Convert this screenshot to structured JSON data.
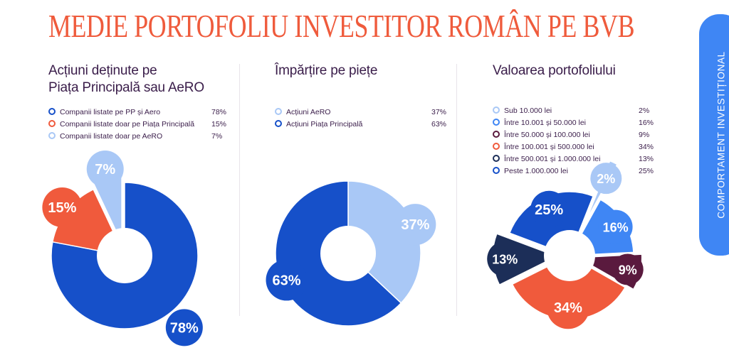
{
  "page": {
    "title": "MEDIE PORTOFOLIU INVESTITOR ROMÂN PE BVB"
  },
  "side_tab": {
    "label": "COMPORTAMENT INVESTIȚIONAL"
  },
  "colors": {
    "title": "#ef5b3c",
    "dark_blue": "#1650c9",
    "orange": "#f05a3c",
    "light_blue": "#a9c8f6",
    "mid_blue": "#3f86f4",
    "maroon": "#5a1a3e",
    "navy": "#1c2e58",
    "heading": "#3a1d4a"
  },
  "chart_data": [
    {
      "type": "pie",
      "title": "Acțiuni deținute pe Piața Principală sau AeRO",
      "title_lines": [
        "Acțiuni deținute pe",
        "Piața Principală sau AeRO"
      ],
      "series": [
        {
          "name": "Companii listate pe PP și Aero",
          "value": 78,
          "label": "78%",
          "color": "#1650c9"
        },
        {
          "name": "Companii listate doar pe Piața Principală",
          "value": 15,
          "label": "15%",
          "color": "#f05a3c"
        },
        {
          "name": "Companii listate doar pe AeRO",
          "value": 7,
          "label": "7%",
          "color": "#a9c8f6"
        }
      ],
      "legend_position": "top"
    },
    {
      "type": "pie",
      "title": "Împărțire pe piețe",
      "title_lines": [
        "Împărțire pe piețe"
      ],
      "series": [
        {
          "name": "Acțiuni AeRO",
          "value": 37,
          "label": "37%",
          "color": "#a9c8f6"
        },
        {
          "name": "Acțiuni Piața Principală",
          "value": 63,
          "label": "63%",
          "color": "#1650c9"
        }
      ],
      "legend_position": "top"
    },
    {
      "type": "pie",
      "title": "Valoarea portofoliului",
      "title_lines": [
        "Valoarea portofoliului"
      ],
      "series": [
        {
          "name": "Sub 10.000 lei",
          "value": 2,
          "label": "2%",
          "color": "#a9c8f6"
        },
        {
          "name": "Între 10.001 și 50.000 lei",
          "value": 16,
          "label": "16%",
          "color": "#3f86f4"
        },
        {
          "name": "Între 50.000 și 100.000 lei",
          "value": 9,
          "label": "9%",
          "color": "#5a1a3e"
        },
        {
          "name": "Între 100.001 și 500.000 lei",
          "value": 34,
          "label": "34%",
          "color": "#f05a3c"
        },
        {
          "name": "Între 500.001 și 1.000.000 lei",
          "value": 13,
          "label": "13%",
          "color": "#1c2e58"
        },
        {
          "name": "Peste 1.000.000 lei",
          "value": 25,
          "label": "25%",
          "color": "#1650c9"
        }
      ],
      "legend_position": "top"
    }
  ]
}
